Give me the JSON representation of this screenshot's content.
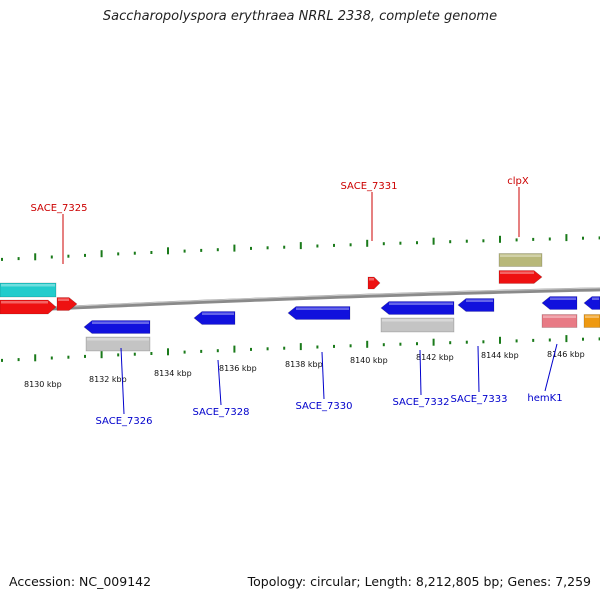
{
  "title": "Saccharopolyspora erythraea NRRL 2338, complete genome",
  "footer": {
    "accession": "Accession: NC_009142",
    "topology": "Topology: circular; Length: 8,212,805 bp; Genes: 7,259"
  },
  "colors": {
    "forward_label": "#cc0000",
    "reverse_label": "#0000cc",
    "tick": "#1a7a1a",
    "backbone": "#8a8a8a"
  },
  "ticks": [
    "8130 kbp",
    "8132 kbp",
    "8134 kbp",
    "8136 kbp",
    "8138 kbp",
    "8140 kbp",
    "8142 kbp",
    "8144 kbp",
    "8146 kbp"
  ],
  "gene_labels": {
    "forward": [
      "SACE_7325",
      "SACE_7331",
      "clpX"
    ],
    "reverse": [
      "SACE_7326",
      "SACE_7328",
      "SACE_7330",
      "SACE_7332",
      "SACE_7333",
      "hemK1"
    ]
  }
}
